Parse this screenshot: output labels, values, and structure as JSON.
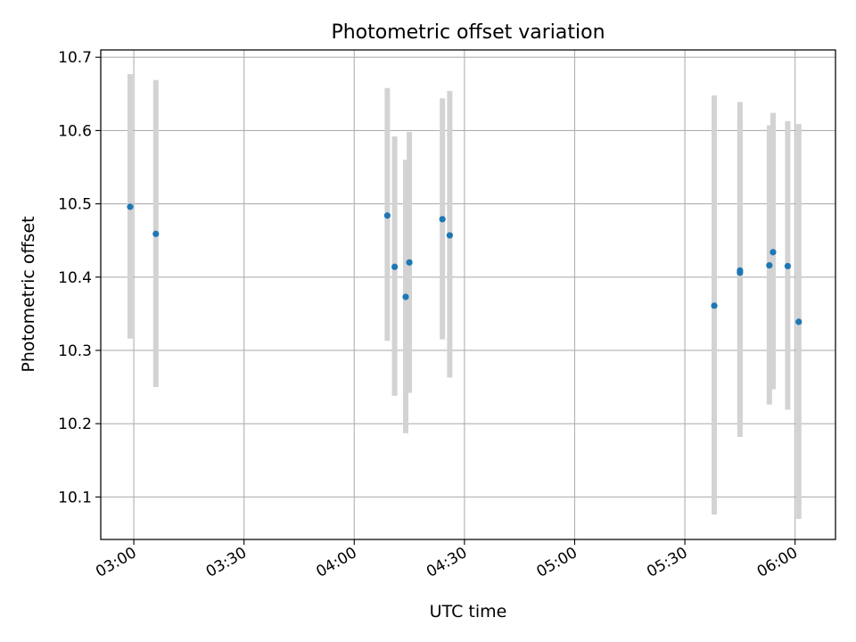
{
  "chart_data": {
    "type": "scatter",
    "title": "Photometric offset variation",
    "xlabel": "UTC time",
    "ylabel": "Photometric offset",
    "x_tick_labels": [
      "03:00",
      "03:30",
      "04:00",
      "04:30",
      "05:00",
      "05:30",
      "06:00"
    ],
    "y_tick_labels": [
      "10.1",
      "10.2",
      "10.3",
      "10.4",
      "10.5",
      "10.6",
      "10.7"
    ],
    "xlim": [
      "02:51",
      "06:11"
    ],
    "ylim": [
      10.042,
      10.71
    ],
    "grid": true,
    "point_color": "#1f77b4",
    "errorbar_color": "#d3d3d3",
    "points": [
      {
        "x": "02:59",
        "y": 10.496,
        "err_low": 10.316,
        "err_high": 10.677
      },
      {
        "x": "03:06",
        "y": 10.459,
        "err_low": 10.25,
        "err_high": 10.669
      },
      {
        "x": "04:09",
        "y": 10.484,
        "err_low": 10.313,
        "err_high": 10.658
      },
      {
        "x": "04:11",
        "y": 10.414,
        "err_low": 10.238,
        "err_high": 10.592
      },
      {
        "x": "04:14",
        "y": 10.373,
        "err_low": 10.187,
        "err_high": 10.56
      },
      {
        "x": "04:15",
        "y": 10.42,
        "err_low": 10.242,
        "err_high": 10.598
      },
      {
        "x": "04:24",
        "y": 10.479,
        "err_low": 10.315,
        "err_high": 10.644
      },
      {
        "x": "04:26",
        "y": 10.457,
        "err_low": 10.263,
        "err_high": 10.654
      },
      {
        "x": "05:38",
        "y": 10.361,
        "err_low": 10.076,
        "err_high": 10.648
      },
      {
        "x": "05:45",
        "y": 10.406,
        "err_low": 10.195,
        "err_high": 10.617
      },
      {
        "x": "05:45",
        "y": 10.409,
        "err_low": 10.182,
        "err_high": 10.639
      },
      {
        "x": "05:53",
        "y": 10.416,
        "err_low": 10.226,
        "err_high": 10.607
      },
      {
        "x": "05:54",
        "y": 10.434,
        "err_low": 10.247,
        "err_high": 10.624
      },
      {
        "x": "05:58",
        "y": 10.415,
        "err_low": 10.219,
        "err_high": 10.613
      },
      {
        "x": "06:01",
        "y": 10.339,
        "err_low": 10.07,
        "err_high": 10.609
      }
    ]
  }
}
